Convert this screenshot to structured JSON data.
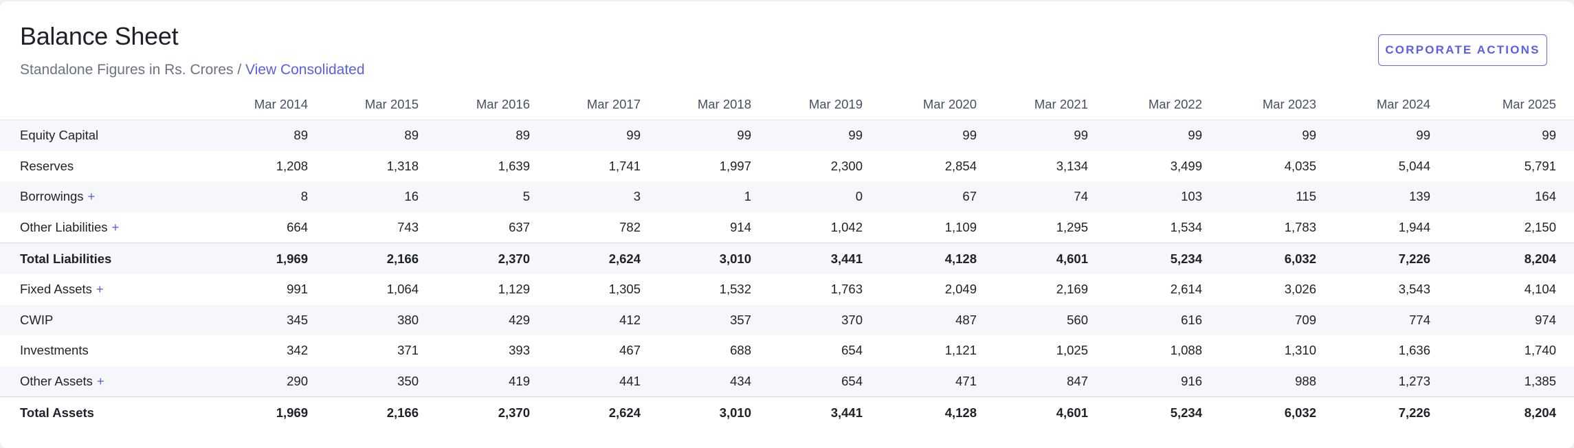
{
  "header": {
    "title": "Balance Sheet",
    "subtitle_prefix": "Standalone Figures in Rs. Crores / ",
    "subtitle_link": "View Consolidated",
    "corporate_actions_label": "CORPORATE ACTIONS"
  },
  "columns": [
    "Mar 2014",
    "Mar 2015",
    "Mar 2016",
    "Mar 2017",
    "Mar 2018",
    "Mar 2019",
    "Mar 2020",
    "Mar 2021",
    "Mar 2022",
    "Mar 2023",
    "Mar 2024",
    "Mar 2025"
  ],
  "rows": [
    {
      "label": "Equity Capital",
      "expandable": false,
      "total": false,
      "values": [
        "89",
        "89",
        "89",
        "99",
        "99",
        "99",
        "99",
        "99",
        "99",
        "99",
        "99",
        "99"
      ]
    },
    {
      "label": "Reserves",
      "expandable": false,
      "total": false,
      "values": [
        "1,208",
        "1,318",
        "1,639",
        "1,741",
        "1,997",
        "2,300",
        "2,854",
        "3,134",
        "3,499",
        "4,035",
        "5,044",
        "5,791"
      ]
    },
    {
      "label": "Borrowings",
      "expandable": true,
      "total": false,
      "values": [
        "8",
        "16",
        "5",
        "3",
        "1",
        "0",
        "67",
        "74",
        "103",
        "115",
        "139",
        "164"
      ]
    },
    {
      "label": "Other Liabilities",
      "expandable": true,
      "total": false,
      "values": [
        "664",
        "743",
        "637",
        "782",
        "914",
        "1,042",
        "1,109",
        "1,295",
        "1,534",
        "1,783",
        "1,944",
        "2,150"
      ]
    },
    {
      "label": "Total Liabilities",
      "expandable": false,
      "total": true,
      "values": [
        "1,969",
        "2,166",
        "2,370",
        "2,624",
        "3,010",
        "3,441",
        "4,128",
        "4,601",
        "5,234",
        "6,032",
        "7,226",
        "8,204"
      ]
    },
    {
      "label": "Fixed Assets",
      "expandable": true,
      "total": false,
      "values": [
        "991",
        "1,064",
        "1,129",
        "1,305",
        "1,532",
        "1,763",
        "2,049",
        "2,169",
        "2,614",
        "3,026",
        "3,543",
        "4,104"
      ]
    },
    {
      "label": "CWIP",
      "expandable": false,
      "total": false,
      "values": [
        "345",
        "380",
        "429",
        "412",
        "357",
        "370",
        "487",
        "560",
        "616",
        "709",
        "774",
        "974"
      ]
    },
    {
      "label": "Investments",
      "expandable": false,
      "total": false,
      "values": [
        "342",
        "371",
        "393",
        "467",
        "688",
        "654",
        "1,121",
        "1,025",
        "1,088",
        "1,310",
        "1,636",
        "1,740"
      ]
    },
    {
      "label": "Other Assets",
      "expandable": true,
      "total": false,
      "values": [
        "290",
        "350",
        "419",
        "441",
        "434",
        "654",
        "471",
        "847",
        "916",
        "988",
        "1,273",
        "1,385"
      ]
    },
    {
      "label": "Total Assets",
      "expandable": false,
      "total": true,
      "values": [
        "1,969",
        "2,166",
        "2,370",
        "2,624",
        "3,010",
        "3,441",
        "4,128",
        "4,601",
        "5,234",
        "6,032",
        "7,226",
        "8,204"
      ]
    }
  ],
  "expand_symbol": "+",
  "colors": {
    "accent": "#5b5fe0",
    "row_stripe": "#f6f7fb",
    "muted_text": "#6b7280"
  }
}
